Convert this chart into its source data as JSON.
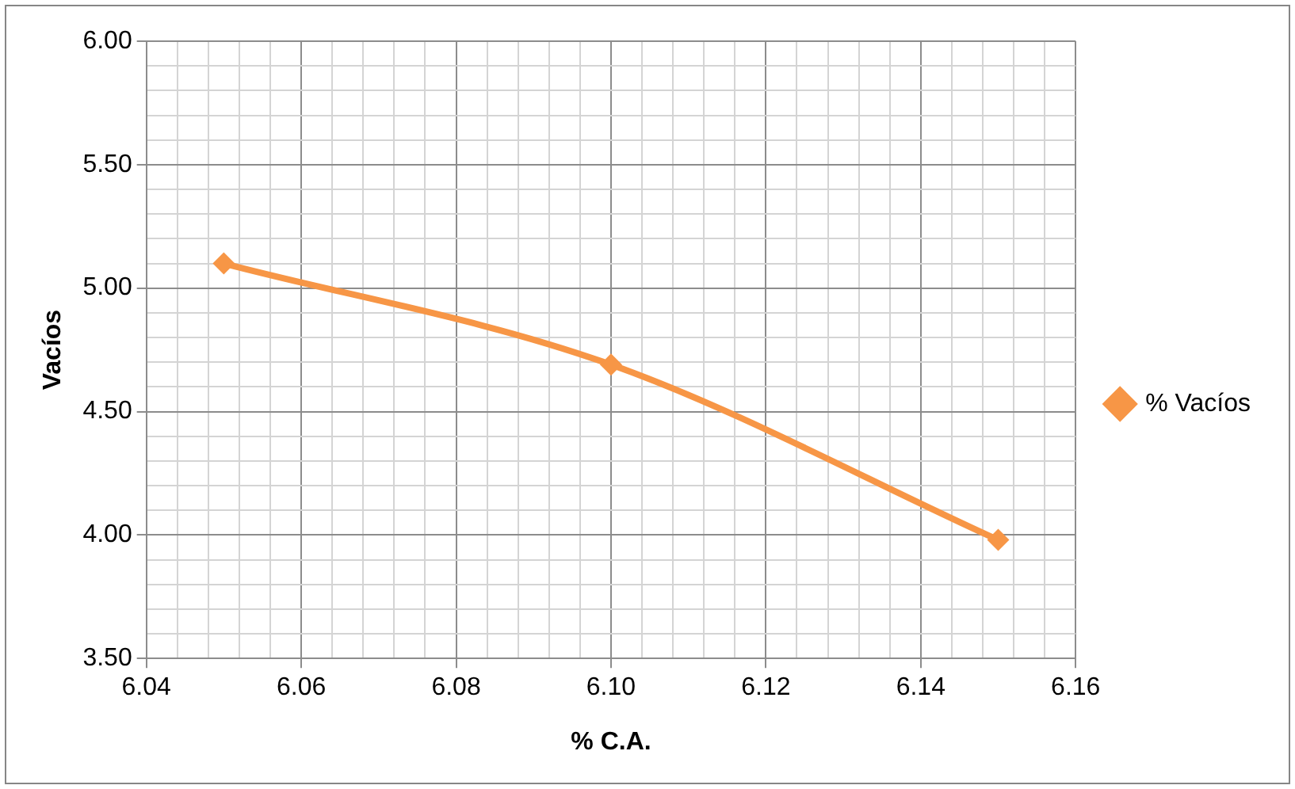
{
  "chart_data": {
    "type": "line",
    "xlabel": "% C.A.",
    "ylabel": "Vacíos",
    "x": [
      6.05,
      6.1,
      6.15
    ],
    "series": [
      {
        "name": "% Vacíos",
        "color": "#f79646",
        "values": [
          5.1,
          4.69,
          3.98
        ]
      }
    ],
    "marker": "diamond",
    "line_style": "solid",
    "grid": true,
    "legend": "right",
    "xlim": [
      6.04,
      6.16
    ],
    "xticks": [
      {
        "value": 6.04,
        "label": "6.04"
      },
      {
        "value": 6.044,
        "label": null
      },
      {
        "value": 6.048,
        "label": null
      },
      {
        "value": 6.052,
        "label": null
      },
      {
        "value": 6.056,
        "label": null
      },
      {
        "value": 6.06,
        "label": "6.06"
      },
      {
        "value": 6.064,
        "label": null
      },
      {
        "value": 6.068,
        "label": null
      },
      {
        "value": 6.072,
        "label": null
      },
      {
        "value": 6.076,
        "label": null
      },
      {
        "value": 6.08,
        "label": "6.08"
      },
      {
        "value": 6.084,
        "label": null
      },
      {
        "value": 6.088,
        "label": null
      },
      {
        "value": 6.092,
        "label": null
      },
      {
        "value": 6.096,
        "label": null
      },
      {
        "value": 6.1,
        "label": "6.10"
      },
      {
        "value": 6.104,
        "label": null
      },
      {
        "value": 6.108,
        "label": null
      },
      {
        "value": 6.112,
        "label": null
      },
      {
        "value": 6.116,
        "label": null
      },
      {
        "value": 6.12,
        "label": "6.12"
      },
      {
        "value": 6.124,
        "label": null
      },
      {
        "value": 6.128,
        "label": null
      },
      {
        "value": 6.132,
        "label": null
      },
      {
        "value": 6.136,
        "label": null
      },
      {
        "value": 6.14,
        "label": "6.14"
      },
      {
        "value": 6.144,
        "label": null
      },
      {
        "value": 6.148,
        "label": null
      },
      {
        "value": 6.152,
        "label": null
      },
      {
        "value": 6.156,
        "label": null
      },
      {
        "value": 6.16,
        "label": "6.16"
      }
    ],
    "ylim": [
      3.5,
      6.0
    ],
    "yticks": [
      {
        "value": 3.5,
        "label": "3.50"
      },
      {
        "value": 3.6,
        "label": null
      },
      {
        "value": 3.7,
        "label": null
      },
      {
        "value": 3.8,
        "label": null
      },
      {
        "value": 3.9,
        "label": null
      },
      {
        "value": 4.0,
        "label": "4.00"
      },
      {
        "value": 4.1,
        "label": null
      },
      {
        "value": 4.2,
        "label": null
      },
      {
        "value": 4.3,
        "label": null
      },
      {
        "value": 4.4,
        "label": null
      },
      {
        "value": 4.5,
        "label": "4.50"
      },
      {
        "value": 4.6,
        "label": null
      },
      {
        "value": 4.7,
        "label": null
      },
      {
        "value": 4.8,
        "label": null
      },
      {
        "value": 4.9,
        "label": null
      },
      {
        "value": 5.0,
        "label": "5.00"
      },
      {
        "value": 5.1,
        "label": null
      },
      {
        "value": 5.2,
        "label": null
      },
      {
        "value": 5.3,
        "label": null
      },
      {
        "value": 5.4,
        "label": null
      },
      {
        "value": 5.5,
        "label": "5.50"
      },
      {
        "value": 5.6,
        "label": null
      },
      {
        "value": 5.7,
        "label": null
      },
      {
        "value": 5.8,
        "label": null
      },
      {
        "value": 5.9,
        "label": null
      },
      {
        "value": 6.0,
        "label": "6.00"
      }
    ]
  }
}
